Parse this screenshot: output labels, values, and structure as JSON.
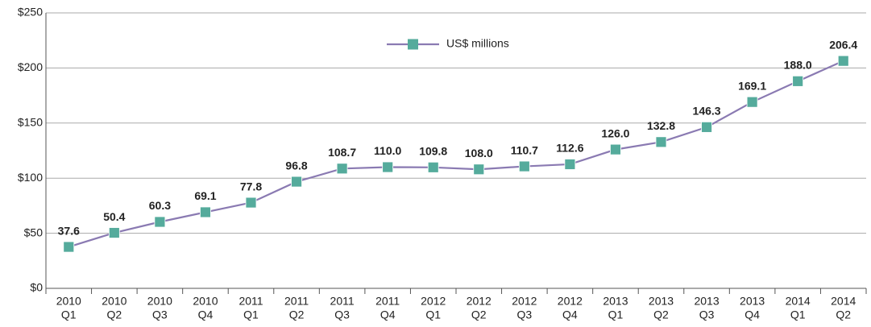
{
  "chart_data": {
    "type": "line",
    "categories": [
      [
        "2010",
        "Q1"
      ],
      [
        "2010",
        "Q2"
      ],
      [
        "2010",
        "Q3"
      ],
      [
        "2010",
        "Q4"
      ],
      [
        "2011",
        "Q1"
      ],
      [
        "2011",
        "Q2"
      ],
      [
        "2011",
        "Q3"
      ],
      [
        "2011",
        "Q4"
      ],
      [
        "2012",
        "Q1"
      ],
      [
        "2012",
        "Q2"
      ],
      [
        "2012",
        "Q3"
      ],
      [
        "2012",
        "Q4"
      ],
      [
        "2013",
        "Q1"
      ],
      [
        "2013",
        "Q2"
      ],
      [
        "2013",
        "Q3"
      ],
      [
        "2013",
        "Q4"
      ],
      [
        "2014",
        "Q1"
      ],
      [
        "2014",
        "Q2"
      ]
    ],
    "series": [
      {
        "name": "US$ millions",
        "color": "#8a7ab2",
        "marker_color": "#55ab9c",
        "values": [
          37.6,
          50.4,
          60.3,
          69.1,
          77.8,
          96.8,
          108.7,
          110.0,
          109.8,
          108.0,
          110.7,
          112.6,
          126.0,
          132.8,
          146.3,
          169.1,
          188.0,
          206.4
        ],
        "value_labels": [
          "37.6",
          "50.4",
          "60.3",
          "69.1",
          "77.8",
          "96.8",
          "108.7",
          "110.0",
          "109.8",
          "108.0",
          "110.7",
          "112.6",
          "126.0",
          "132.8",
          "146.3",
          "169.1",
          "188.0",
          "206.4"
        ]
      }
    ],
    "ylim": [
      0,
      250
    ],
    "yticks": [
      {
        "value": 0,
        "label": "$0"
      },
      {
        "value": 50,
        "label": "$50"
      },
      {
        "value": 100,
        "label": "$100"
      },
      {
        "value": 150,
        "label": "$150"
      },
      {
        "value": 200,
        "label": "$200"
      },
      {
        "value": 250,
        "label": "$250"
      }
    ],
    "grid": true,
    "legend": "top"
  }
}
